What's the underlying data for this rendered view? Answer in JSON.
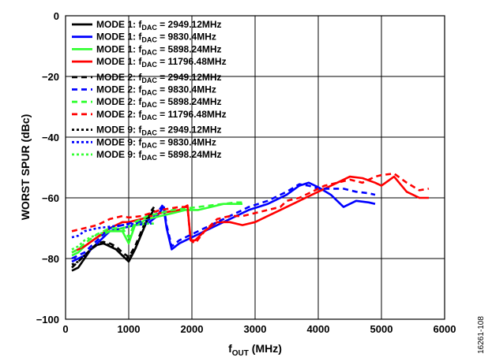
{
  "figure_id": "16261-108",
  "chart_data": {
    "type": "line",
    "xlabel": {
      "main": "f",
      "sub": "OUT",
      "rest": " (MHz)"
    },
    "ylabel": "WORST SPUR (dBc)",
    "xlim": [
      0,
      6000
    ],
    "ylim": [
      -100,
      0
    ],
    "x_ticks": [
      0,
      1000,
      2000,
      3000,
      4000,
      5000,
      6000
    ],
    "x_tick_labels": [
      "0",
      "1000",
      "2000",
      "3000",
      "4000",
      "5000",
      "6000"
    ],
    "y_ticks": [
      0,
      -20,
      -40,
      -60,
      -80,
      -100
    ],
    "y_tick_labels": [
      "0",
      "−20",
      "−40",
      "−60",
      "−80",
      "−100"
    ],
    "grid": true,
    "legend_position": "top-left",
    "series": [
      {
        "label_prefix": "MODE 1: f",
        "label_sub": "DAC",
        "label_suffix": " = 2949.12MHz",
        "color": "#000000",
        "dash": "solid",
        "x": [
          100,
          200,
          300,
          400,
          500,
          600,
          700,
          800,
          900,
          1000,
          1100,
          1200,
          1300,
          1400
        ],
        "y": [
          -84,
          -83,
          -80,
          -77,
          -75.5,
          -75,
          -76,
          -77,
          -79,
          -81,
          -77,
          -72,
          -67,
          -64
        ]
      },
      {
        "label_prefix": "MODE 1: f",
        "label_sub": "DAC",
        "label_suffix": " = 9830.4MHz",
        "color": "#0000ff",
        "dash": "solid",
        "x": [
          100,
          300,
          500,
          700,
          900,
          1100,
          1300,
          1450,
          1550,
          1600,
          1680,
          1800,
          2000,
          2300,
          2600,
          2900,
          3200,
          3500,
          3700,
          3850,
          4000,
          4200,
          4400,
          4600,
          4800,
          4900
        ],
        "y": [
          -81,
          -79,
          -75,
          -71,
          -70,
          -69,
          -68.5,
          -66,
          -63,
          -70,
          -77,
          -75,
          -73,
          -70,
          -67,
          -64,
          -62,
          -59,
          -56,
          -55,
          -56.5,
          -59,
          -63,
          -61,
          -61.5,
          -62
        ]
      },
      {
        "label_prefix": "MODE 1: f",
        "label_sub": "DAC",
        "label_suffix": " = 5898.24MHz",
        "color": "#33ff33",
        "dash": "solid",
        "x": [
          100,
          200,
          300,
          500,
          700,
          900,
          1000,
          1100,
          1300,
          1500,
          1700,
          1900,
          2100,
          2300,
          2500,
          2700,
          2800
        ],
        "y": [
          -79,
          -78,
          -76,
          -73,
          -71,
          -71,
          -75,
          -69,
          -67,
          -66,
          -65,
          -64,
          -64,
          -63,
          -62,
          -62,
          -62
        ]
      },
      {
        "label_prefix": "MODE 1: f",
        "label_sub": "DAC",
        "label_suffix": " = 11796.48MHz",
        "color": "#ff0000",
        "dash": "solid",
        "x": [
          100,
          300,
          500,
          700,
          900,
          1000,
          1200,
          1500,
          1800,
          1930,
          1980,
          2050,
          2200,
          2400,
          2600,
          2800,
          3000,
          3200,
          3400,
          3500,
          3700,
          3900,
          4100,
          4300,
          4500,
          4700,
          4900,
          5000,
          5200,
          5400,
          5600,
          5750
        ],
        "y": [
          -78,
          -76,
          -73,
          -70,
          -68,
          -68,
          -67,
          -65,
          -64,
          -62.5,
          -74,
          -74,
          -71,
          -68,
          -68,
          -69,
          -68,
          -66,
          -64,
          -63,
          -61,
          -59,
          -57,
          -55,
          -53,
          -53.5,
          -55,
          -56,
          -53,
          -58,
          -60,
          -60
        ]
      },
      {
        "label_prefix": "MODE 2: f",
        "label_sub": "DAC",
        "label_suffix": " = 2949.12MHz",
        "color": "#000000",
        "dash": "dashed",
        "x": [
          100,
          200,
          300,
          400,
          500,
          600,
          700,
          800,
          900,
          1000,
          1100,
          1200,
          1300,
          1400
        ],
        "y": [
          -83,
          -81,
          -79,
          -77,
          -75,
          -74.5,
          -75,
          -76,
          -78,
          -79.5,
          -76,
          -71,
          -66,
          -63
        ]
      },
      {
        "label_prefix": "MODE 2: f",
        "label_sub": "DAC",
        "label_suffix": " = 9830.4MHz",
        "color": "#0000ff",
        "dash": "dashed",
        "x": [
          100,
          300,
          500,
          700,
          900,
          1100,
          1300,
          1450,
          1550,
          1600,
          1680,
          1800,
          2000,
          2300,
          2600,
          2900,
          3200,
          3500,
          3700,
          3850,
          4000,
          4200,
          4400,
          4600,
          4800,
          4900
        ],
        "y": [
          -80,
          -78,
          -74,
          -70,
          -69,
          -68,
          -67.5,
          -65,
          -62,
          -69,
          -76,
          -74,
          -72,
          -69,
          -66,
          -63,
          -61,
          -58,
          -55.5,
          -56,
          -57,
          -57,
          -57,
          -58,
          -58.5,
          -59
        ]
      },
      {
        "label_prefix": "MODE 2: f",
        "label_sub": "DAC",
        "label_suffix": " = 5898.24MHz",
        "color": "#33ff33",
        "dash": "dashed",
        "x": [
          100,
          200,
          300,
          500,
          700,
          900,
          1000,
          1100,
          1300,
          1500,
          1700,
          1900,
          2100,
          2300,
          2500,
          2700,
          2800
        ],
        "y": [
          -78,
          -77,
          -75,
          -72,
          -70,
          -70,
          -73,
          -68,
          -66,
          -65,
          -64,
          -63.5,
          -63,
          -62.5,
          -62,
          -61.5,
          -61.5
        ]
      },
      {
        "label_prefix": "MODE 2: f",
        "label_sub": "DAC",
        "label_suffix": " = 11796.48MHz",
        "color": "#ff0000",
        "dash": "dashed",
        "x": [
          100,
          300,
          500,
          700,
          900,
          1000,
          1200,
          1500,
          1800,
          1930,
          1980,
          2050,
          2200,
          2400,
          2600,
          2800,
          3000,
          3200,
          3400,
          3500,
          3700,
          3900,
          4100,
          4300,
          4500,
          4700,
          4900,
          5000,
          5200,
          5400,
          5600,
          5750
        ],
        "y": [
          -71,
          -70,
          -69,
          -67,
          -66,
          -66.5,
          -66,
          -64,
          -63,
          -63,
          -74,
          -75,
          -71,
          -67,
          -66,
          -66,
          -65,
          -64,
          -63,
          -61,
          -60,
          -58,
          -56,
          -55,
          -54,
          -55,
          -53,
          -52.5,
          -52,
          -55,
          -57.5,
          -57
        ]
      },
      {
        "label_prefix": "MODE 9: f",
        "label_sub": "DAC",
        "label_suffix": " = 2949.12MHz",
        "color": "#000000",
        "dash": "dotted",
        "x": [
          100,
          200,
          300,
          400,
          500,
          600,
          700,
          800,
          900,
          1000,
          1100,
          1200,
          1300,
          1400
        ],
        "y": [
          -82,
          -81,
          -79,
          -77,
          -75.5,
          -75,
          -75.5,
          -77,
          -79,
          -80,
          -77,
          -72,
          -67,
          -64
        ]
      },
      {
        "label_prefix": "MODE 9: f",
        "label_sub": "DAC",
        "label_suffix": " = 9830.4MHz",
        "color": "#0000ff",
        "dash": "dotted",
        "x": [
          100,
          200,
          300,
          500,
          700,
          900,
          1100,
          1300,
          1400
        ],
        "y": [
          -73,
          -72.5,
          -71,
          -70,
          -69.5,
          -69,
          -68.5,
          -68.5,
          -68.5
        ]
      },
      {
        "label_prefix": "MODE 9: f",
        "label_sub": "DAC",
        "label_suffix": " = 5898.24MHz",
        "color": "#33ff33",
        "dash": "dotted",
        "x": [
          100,
          200,
          300,
          500,
          700,
          900,
          1100,
          1300,
          1400
        ],
        "y": [
          -77,
          -76,
          -74,
          -72,
          -71,
          -70,
          -69,
          -68.5,
          -68.5
        ]
      }
    ]
  }
}
